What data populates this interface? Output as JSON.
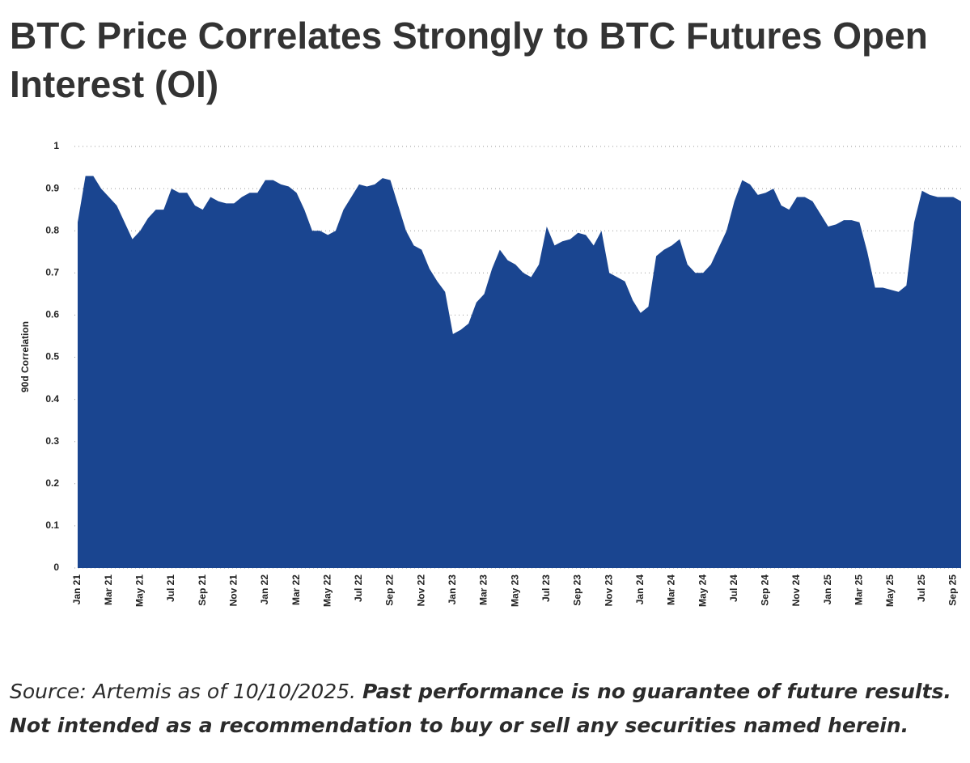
{
  "chart_data": {
    "type": "area",
    "title": "BTC Price Correlates Strongly to BTC Futures Open Interest (OI)",
    "y_label": "90d Correlation",
    "footer_source": "Source: Artemis as of 10/10/2025.",
    "footer_disclaimer": "Past performance is no guarantee of future results. Not intended as a recommendation to buy or sell any securities named herein.",
    "color": "#1a4590",
    "grid": true,
    "ylim": [
      0,
      1
    ],
    "yticks": [
      0,
      0.1,
      0.2,
      0.3,
      0.4,
      0.5,
      0.6,
      0.7,
      0.8,
      0.9,
      1
    ],
    "categories": [
      "Jan 21",
      null,
      null,
      null,
      "Mar 21",
      null,
      null,
      null,
      "May 21",
      null,
      null,
      null,
      "Jul 21",
      null,
      null,
      null,
      "Sep 21",
      null,
      null,
      null,
      "Nov 21",
      null,
      null,
      null,
      "Jan 22",
      null,
      null,
      null,
      "Mar 22",
      null,
      null,
      null,
      "May 22",
      null,
      null,
      null,
      "Jul 22",
      null,
      null,
      null,
      "Sep 22",
      null,
      null,
      null,
      "Nov 22",
      null,
      null,
      null,
      "Jan 23",
      null,
      null,
      null,
      "Mar 23",
      null,
      null,
      null,
      "May 23",
      null,
      null,
      null,
      "Jul 23",
      null,
      null,
      null,
      "Sep 23",
      null,
      null,
      null,
      "Nov 23",
      null,
      null,
      null,
      "Jan 24",
      null,
      null,
      null,
      "Mar 24",
      null,
      null,
      null,
      "May 24",
      null,
      null,
      null,
      "Jul 24",
      null,
      null,
      null,
      "Sep 24",
      null,
      null,
      null,
      "Nov 24",
      null,
      null,
      null,
      "Jan 25",
      null,
      null,
      null,
      "Mar 25",
      null,
      null,
      null,
      "May 25",
      null,
      null,
      null,
      "Jul 25",
      null,
      null,
      null,
      "Sep 25",
      null
    ],
    "values": [
      0.82,
      0.93,
      0.93,
      0.9,
      0.88,
      0.86,
      0.82,
      0.78,
      0.8,
      0.83,
      0.85,
      0.85,
      0.9,
      0.89,
      0.89,
      0.86,
      0.85,
      0.88,
      0.87,
      0.865,
      0.865,
      0.88,
      0.89,
      0.89,
      0.92,
      0.92,
      0.91,
      0.905,
      0.89,
      0.85,
      0.8,
      0.8,
      0.79,
      0.8,
      0.85,
      0.88,
      0.91,
      0.905,
      0.91,
      0.925,
      0.92,
      0.86,
      0.8,
      0.765,
      0.755,
      0.71,
      0.68,
      0.655,
      0.555,
      0.565,
      0.58,
      0.63,
      0.65,
      0.71,
      0.755,
      0.73,
      0.72,
      0.7,
      0.69,
      0.72,
      0.81,
      0.765,
      0.775,
      0.78,
      0.795,
      0.79,
      0.765,
      0.8,
      0.7,
      0.69,
      0.68,
      0.635,
      0.605,
      0.62,
      0.74,
      0.755,
      0.765,
      0.78,
      0.72,
      0.7,
      0.7,
      0.72,
      0.76,
      0.8,
      0.87,
      0.92,
      0.91,
      0.885,
      0.89,
      0.9,
      0.86,
      0.85,
      0.88,
      0.88,
      0.87,
      0.84,
      0.81,
      0.815,
      0.825,
      0.825,
      0.82,
      0.75,
      0.665,
      0.665,
      0.66,
      0.655,
      0.67,
      0.82,
      0.895,
      0.885,
      0.88,
      0.88,
      0.88,
      0.87
    ]
  }
}
